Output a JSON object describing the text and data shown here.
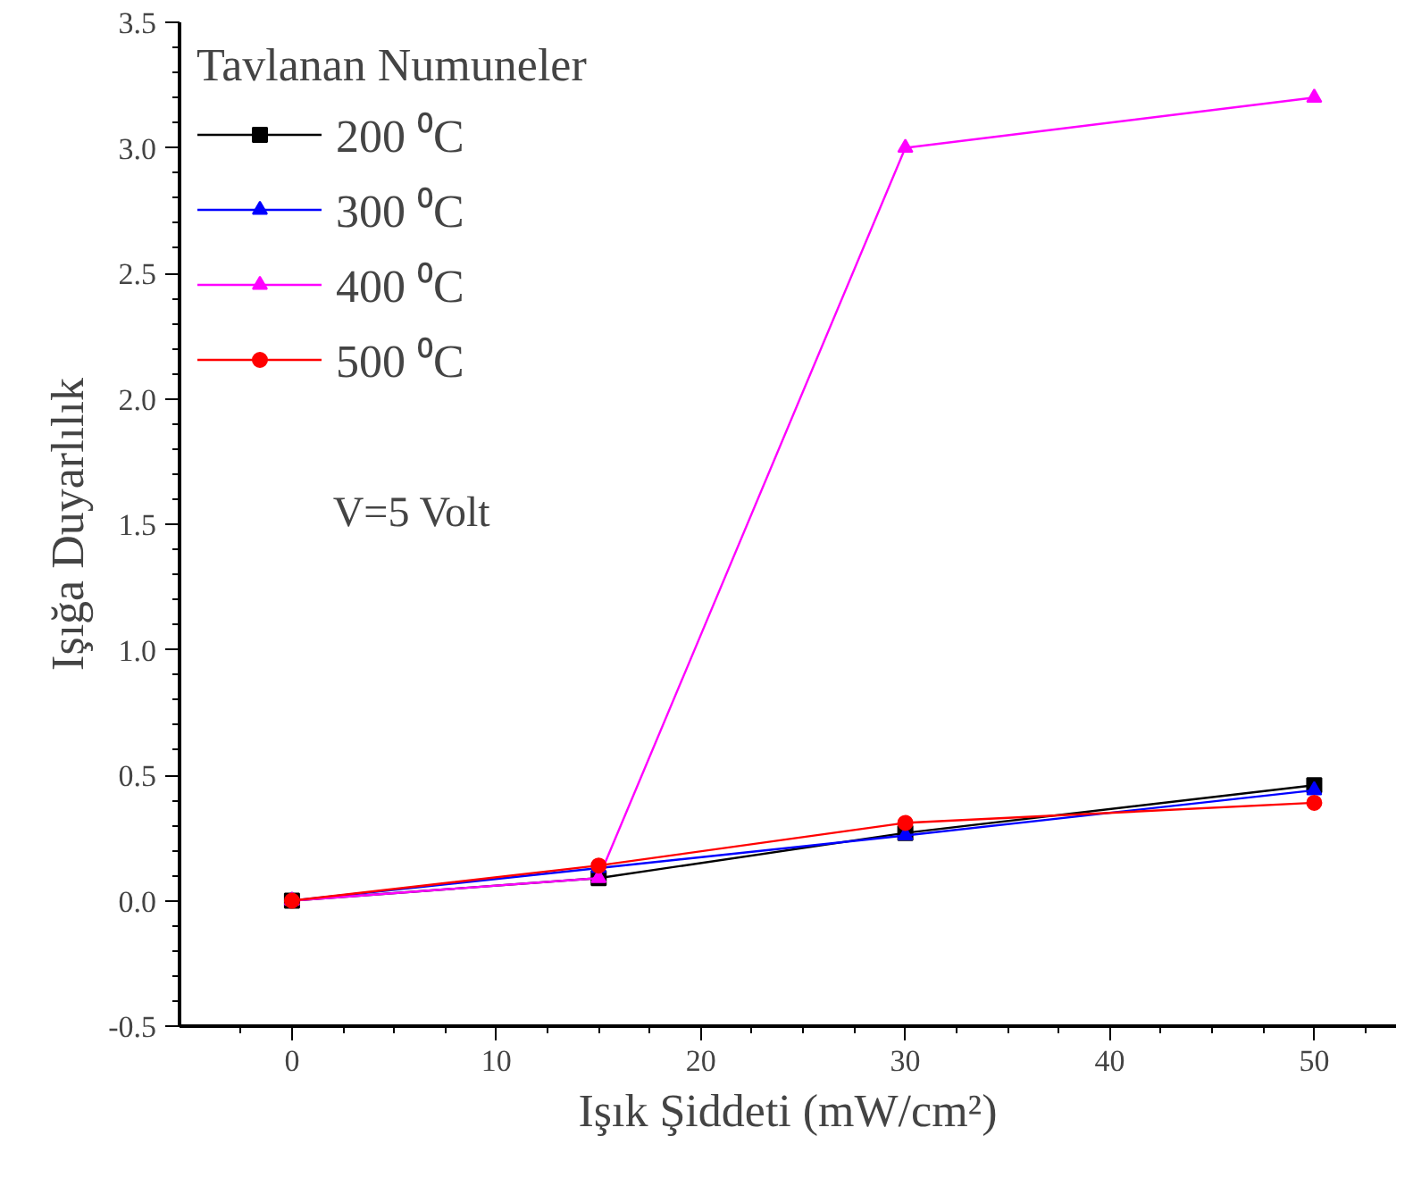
{
  "chart_data": {
    "type": "line",
    "xlabel": "Işık Şiddeti (mW/cm²)",
    "ylabel": "Işığa Duyarlılık",
    "legend_title": "Tavlanan Numuneler",
    "annotations": [
      "V=5 Volt"
    ],
    "x": [
      0,
      15,
      30,
      50
    ],
    "series": [
      {
        "name": "200 ⁰C",
        "color": "#000000",
        "marker": "square",
        "values": [
          0,
          0.09,
          0.27,
          0.46
        ]
      },
      {
        "name": "300 ⁰C",
        "color": "#0000ff",
        "marker": "triangle",
        "values": [
          0,
          0.13,
          0.26,
          0.44
        ]
      },
      {
        "name": "400 ⁰C",
        "color": "#ff00ff",
        "marker": "triangle",
        "values": [
          0,
          0.09,
          3.0,
          3.2
        ]
      },
      {
        "name": "500 ⁰C",
        "color": "#ff0000",
        "marker": "circle",
        "values": [
          0,
          0.14,
          0.31,
          0.39
        ]
      }
    ],
    "xlim": [
      -5.5,
      54
    ],
    "xticks": [
      0,
      10,
      20,
      30,
      40,
      50
    ],
    "ylim": [
      -0.5,
      3.5
    ],
    "yticks": [
      {
        "value": -0.5,
        "label": "-0.5"
      },
      {
        "value": 0,
        "label": "0.0"
      },
      {
        "value": 0.5,
        "label": "0.5"
      },
      {
        "value": 1,
        "label": "1.0"
      },
      {
        "value": 1.5,
        "label": "1.5"
      },
      {
        "value": 2,
        "label": "2.0"
      },
      {
        "value": 2.5,
        "label": "2.5"
      },
      {
        "value": 3,
        "label": "3.0"
      },
      {
        "value": 3.5,
        "label": "3.5"
      }
    ],
    "grid": false,
    "legend": "top left",
    "line_style": "solid"
  }
}
